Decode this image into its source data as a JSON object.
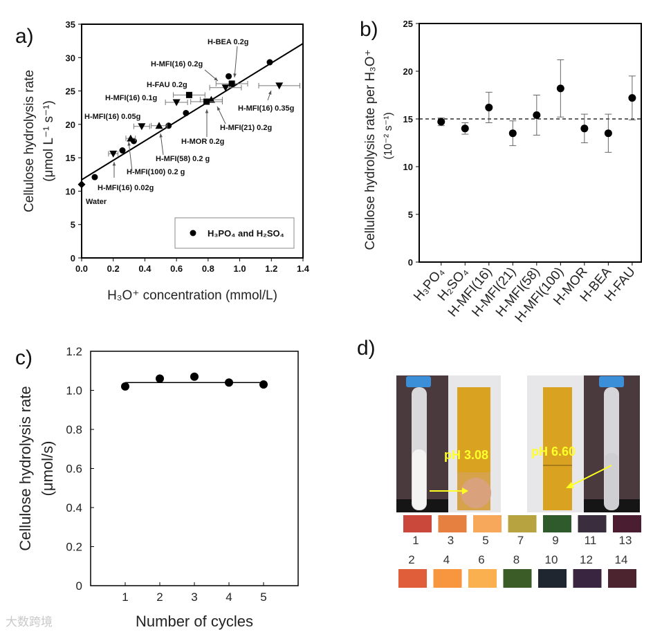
{
  "chart_data": [
    {
      "panel": "a)",
      "type": "scatter",
      "xlabel": "H₃O⁺ concentration (mmol/L)",
      "ylabel": [
        "Cellulose hydrolysis rate",
        "(μmol L⁻¹ s⁻¹)"
      ],
      "xlim": [
        0,
        1.4
      ],
      "ylim": [
        0,
        35
      ],
      "xticks": [
        "0.0",
        "0.2",
        "0.4",
        "0.6",
        "0.8",
        "1.0",
        "1.2",
        "1.4"
      ],
      "yticks": [
        "0",
        "5",
        "10",
        "15",
        "20",
        "25",
        "30",
        "35"
      ],
      "legend": {
        "label": "H₃PO₄ and H₂SO₄",
        "placement": "bottom-right"
      },
      "fit_line": {
        "x": [
          0,
          1.4
        ],
        "y": [
          11.7,
          32.1
        ]
      },
      "series": [
        {
          "name": "H3PO4 and H2SO4",
          "marker": "circle",
          "points": [
            [
              0.083,
              12.1
            ],
            [
              0.258,
              16.1
            ],
            [
              0.33,
              17.5
            ],
            [
              0.55,
              19.8
            ],
            [
              0.66,
              21.7
            ],
            [
              0.93,
              27.2
            ],
            [
              1.19,
              29.3
            ]
          ]
        },
        {
          "name": "Water",
          "marker": "diamond",
          "points": [
            [
              0.0,
              11.0
            ]
          ]
        },
        {
          "name": "H-MFI(16)",
          "marker": "triangle-down",
          "points": [
            [
              0.2,
              15.6,
              0.03
            ],
            [
              0.38,
              19.7,
              0.05
            ],
            [
              0.6,
              23.3,
              0.07
            ],
            [
              0.91,
              25.5,
              0.1
            ],
            [
              1.25,
              25.8,
              0.13
            ]
          ]
        },
        {
          "name": "H-MFI(x) 0.2g",
          "marker": "triangle-up",
          "points": [
            [
              0.31,
              17.9,
              0.03
            ],
            [
              0.49,
              19.8,
              0.05
            ],
            [
              0.82,
              23.7,
              0.07
            ]
          ]
        },
        {
          "name": "H-FAU/H-MOR/H-BEA",
          "marker": "square",
          "points": [
            [
              0.68,
              24.4,
              0.1
            ],
            [
              0.79,
              23.4,
              0.1
            ],
            [
              0.95,
              26.1,
              0.1
            ]
          ]
        }
      ],
      "annotations": [
        "H-BEA 0.2g",
        "H-MFI(16) 0.2g",
        "H-FAU 0.2g",
        "H-MFI(16) 0.1g",
        "H-MFI(16) 0.35g",
        "H-MFI(16) 0.05g",
        "H-MFI(21) 0.2g",
        "H-MOR 0.2g",
        "H-MFI(58) 0.2 g",
        "H-MFI(100) 0.2 g",
        "H-MFI(16) 0.02g",
        "Water"
      ]
    },
    {
      "panel": "b)",
      "type": "scatter",
      "ylabel": [
        "Cellulose hydrolysis rate per H₃O⁺",
        "(10⁻² s⁻¹)"
      ],
      "ylim": [
        0,
        25
      ],
      "yticks": [
        "0",
        "5",
        "10",
        "15",
        "20",
        "25"
      ],
      "categories": [
        "H₃PO₄",
        "H₂SO₄",
        "H-MFI(16)",
        "H-MFI(21)",
        "H-MFI(58)",
        "H-MFI(100)",
        "H-MOR",
        "H-BEA",
        "H-FAU"
      ],
      "values": [
        14.7,
        14.0,
        16.2,
        13.5,
        15.4,
        18.2,
        14.0,
        13.5,
        17.2
      ],
      "errors": [
        0.4,
        0.6,
        1.6,
        1.3,
        2.1,
        3.0,
        1.5,
        2.0,
        2.3
      ],
      "reference_line": 15
    },
    {
      "panel": "c)",
      "type": "line",
      "xlabel": "Number of cycles",
      "ylabel": [
        "Cellulose hydrolysis rate",
        "(μmol/s)"
      ],
      "xlim": [
        0,
        6
      ],
      "ylim": [
        0,
        1.2
      ],
      "xticks": [
        "1",
        "2",
        "3",
        "4",
        "5"
      ],
      "yticks": [
        "0",
        "0.2",
        "0.4",
        "0.6",
        "0.8",
        "1.0",
        "1.2"
      ],
      "x": [
        1,
        2,
        3,
        4,
        5
      ],
      "values": [
        1.02,
        1.06,
        1.07,
        1.04,
        1.03
      ],
      "mean_line": 1.04
    }
  ],
  "panel_d": {
    "label": "d)",
    "ph_left": "pH 3.08",
    "ph_right": "pH 6.60",
    "scale_top": [
      {
        "n": "1",
        "color": "#c9473b"
      },
      {
        "n": "3",
        "color": "#e58040"
      },
      {
        "n": "5",
        "color": "#f8a85a"
      },
      {
        "n": "7",
        "color": "#b7a440"
      },
      {
        "n": "9",
        "color": "#2f5a2b"
      },
      {
        "n": "11",
        "color": "#3a2d3d"
      },
      {
        "n": "13",
        "color": "#4a1d30"
      }
    ],
    "scale_bottom": [
      {
        "n": "2",
        "color": "#e05e3a"
      },
      {
        "n": "4",
        "color": "#f8953f"
      },
      {
        "n": "6",
        "color": "#fbb050"
      },
      {
        "n": "8",
        "color": "#3b5c26"
      },
      {
        "n": "10",
        "color": "#1f2630"
      },
      {
        "n": "12",
        "color": "#3a2541"
      },
      {
        "n": "14",
        "color": "#4b2430"
      }
    ]
  },
  "watermark": "大数跨境"
}
